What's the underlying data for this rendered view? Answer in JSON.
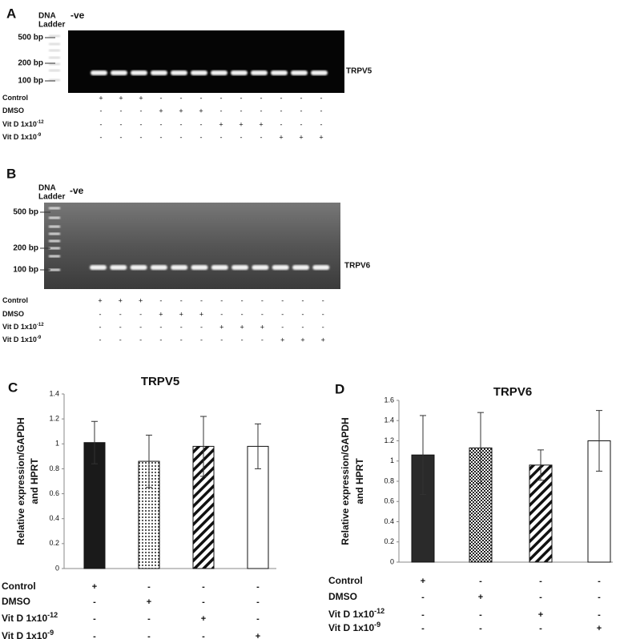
{
  "gels": [
    {
      "panel": "A",
      "ladder_label": [
        "DNA",
        "Ladder"
      ],
      "neg_label": "-ve",
      "markers": [
        "500 bp",
        "200 bp",
        "100 bp"
      ],
      "gene": "TRPV5",
      "rows": [
        {
          "name": "Control",
          "signs": [
            "+",
            "+",
            "+",
            "-",
            "-",
            "-",
            "-",
            "-",
            "-",
            "-",
            "-",
            "-"
          ]
        },
        {
          "name": "DMSO",
          "signs": [
            "-",
            "-",
            "-",
            "+",
            "+",
            "+",
            "-",
            "-",
            "-",
            "-",
            "-",
            "-"
          ]
        },
        {
          "name": "Vit D 1x10",
          "sup": "-12",
          "signs": [
            "-",
            "-",
            "-",
            "-",
            "-",
            "-",
            "+",
            "+",
            "+",
            "-",
            "-",
            "-"
          ]
        },
        {
          "name": "Vit D 1x10",
          "sup": "-9",
          "signs": [
            "-",
            "-",
            "-",
            "-",
            "-",
            "-",
            "-",
            "-",
            "-",
            "+",
            "+",
            "+"
          ]
        }
      ]
    },
    {
      "panel": "B",
      "ladder_label": [
        "DNA",
        "Ladder"
      ],
      "neg_label": "-ve",
      "markers": [
        "500 bp",
        "200 bp",
        "100 bp"
      ],
      "gene": "TRPV6",
      "rows": [
        {
          "name": "Control",
          "signs": [
            "+",
            "+",
            "+",
            "-",
            "-",
            "-",
            "-",
            "-",
            "-",
            "-",
            "-",
            "-"
          ]
        },
        {
          "name": "DMSO",
          "signs": [
            "-",
            "-",
            "-",
            "+",
            "+",
            "+",
            "-",
            "-",
            "-",
            "-",
            "-",
            "-"
          ]
        },
        {
          "name": "Vit D 1x10",
          "sup": "-12",
          "signs": [
            "-",
            "-",
            "-",
            "-",
            "-",
            "-",
            "+",
            "+",
            "+",
            "-",
            "-",
            "-"
          ]
        },
        {
          "name": "Vit D 1x10",
          "sup": "-9",
          "signs": [
            "-",
            "-",
            "-",
            "-",
            "-",
            "-",
            "-",
            "-",
            "-",
            "+",
            "+",
            "+"
          ]
        }
      ]
    }
  ],
  "chart_data": [
    {
      "type": "bar",
      "panel": "C",
      "title": "TRPV5",
      "ylabel": [
        "Relative expression/GAPDH",
        "and HPRT"
      ],
      "values": [
        1.01,
        0.86,
        0.98,
        0.98
      ],
      "errors": [
        0.17,
        0.21,
        0.24,
        0.18
      ],
      "colors": [
        "#1a1a1a",
        "#ffffff",
        "#ffffff",
        "#ffffff"
      ],
      "patterns": [
        "solid",
        "dots",
        "diagonal",
        "none"
      ],
      "ylim": [
        0,
        1.4
      ],
      "yticks": [
        0,
        0.2,
        0.4,
        0.6,
        0.8,
        1,
        1.2,
        1.4
      ],
      "rows": [
        {
          "name": "Control",
          "signs": [
            "+",
            "-",
            "-",
            "-"
          ]
        },
        {
          "name": "DMSO",
          "signs": [
            "-",
            "+",
            "-",
            "-"
          ]
        },
        {
          "name": "Vit D 1x10",
          "sup": "-12",
          "signs": [
            "-",
            "-",
            "+",
            "-"
          ]
        },
        {
          "name": "Vit D 1x10",
          "sup": "-9",
          "signs": [
            "-",
            "-",
            "-",
            "+"
          ]
        }
      ]
    },
    {
      "type": "bar",
      "panel": "D",
      "title": "TRPV6",
      "ylabel": [
        "Relative expression/GAPDH",
        "and HPRT"
      ],
      "values": [
        1.06,
        1.13,
        0.96,
        1.2
      ],
      "errors": [
        0.39,
        0.35,
        0.15,
        0.3
      ],
      "colors": [
        "#2a2a2a",
        "#ffffff",
        "#ffffff",
        "#ffffff"
      ],
      "patterns": [
        "solid",
        "checks",
        "diagonal",
        "none"
      ],
      "ylim": [
        0,
        1.6
      ],
      "yticks": [
        0,
        0.2,
        0.4,
        0.6,
        0.8,
        1,
        1.2,
        1.4,
        1.6
      ],
      "rows": [
        {
          "name": "Control",
          "signs": [
            "+",
            "-",
            "-",
            "-"
          ]
        },
        {
          "name": "DMSO",
          "signs": [
            "-",
            "+",
            "-",
            "-"
          ]
        },
        {
          "name": "Vit D 1x10",
          "sup": "-12",
          "signs": [
            "-",
            "-",
            "+",
            "-"
          ]
        },
        {
          "name": "Vit D 1x10",
          "sup": "-9",
          "signs": [
            "-",
            "-",
            "-",
            "+"
          ]
        }
      ]
    }
  ]
}
